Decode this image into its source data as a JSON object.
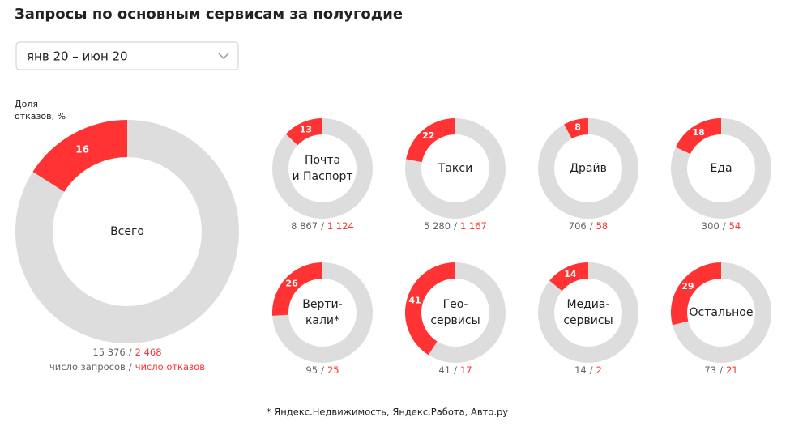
{
  "header": {
    "title": "Запросы по основным сервисам за полугодие",
    "period": "янв 20 – июн 20",
    "value_label": [
      "Доля",
      "отказов, %"
    ],
    "separator": "/",
    "legend": {
      "requests": "число запросов",
      "rejections": "число отказов"
    },
    "footnote": "* Яндекс.Недвижимость, Яндекс.Работа, Авто.ру"
  },
  "chart_data": [
    {
      "type": "pie",
      "title": [
        "Всего"
      ],
      "values": [
        16
      ],
      "color": "#ff3333",
      "requests": "15 376",
      "rejections": "2 468"
    },
    {
      "type": "pie",
      "title": [
        "Почта",
        "и Паспорт"
      ],
      "values": [
        13
      ],
      "color": "#ff3333",
      "requests": "8 867",
      "rejections": "1 124"
    },
    {
      "type": "pie",
      "title": [
        "Такси"
      ],
      "values": [
        22
      ],
      "color": "#ff3333",
      "requests": "5 280",
      "rejections": "1 167"
    },
    {
      "type": "pie",
      "title": [
        "Драйв"
      ],
      "values": [
        8
      ],
      "color": "#ff3333",
      "requests": "706",
      "rejections": "58"
    },
    {
      "type": "pie",
      "title": [
        "Еда"
      ],
      "values": [
        18
      ],
      "color": "#ff3333",
      "requests": "300",
      "rejections": "54"
    },
    {
      "type": "pie",
      "title": [
        "Верти-",
        "кали*"
      ],
      "values": [
        26
      ],
      "color": "#ff3333",
      "requests": "95",
      "rejections": "25"
    },
    {
      "type": "pie",
      "title": [
        "Гео-",
        "сервисы"
      ],
      "values": [
        41
      ],
      "color": "#ff3333",
      "requests": "41",
      "rejections": "17"
    },
    {
      "type": "pie",
      "title": [
        "Медиа-",
        "сервисы"
      ],
      "values": [
        14
      ],
      "color": "#ff3333",
      "requests": "14",
      "rejections": "2"
    },
    {
      "type": "pie",
      "title": [
        "Остальное"
      ],
      "values": [
        29
      ],
      "color": "#ff3333",
      "requests": "73",
      "rejections": "21"
    }
  ]
}
